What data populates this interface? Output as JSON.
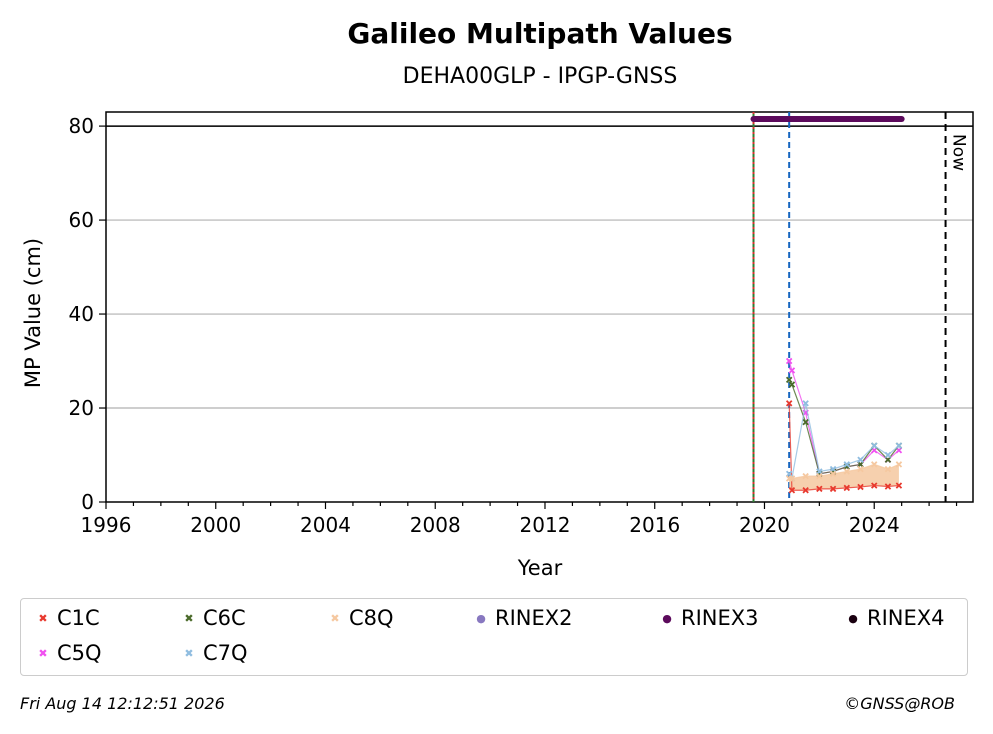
{
  "chart_data": {
    "type": "scatter",
    "title": "Galileo Multipath Values",
    "subtitle": "DEHA00GLP - IPGP-GNSS",
    "xlabel": "Year",
    "ylabel": "MP Value (cm)",
    "xlim": [
      1996,
      2027.6
    ],
    "ylim": [
      0,
      83
    ],
    "x_ticks": [
      1996,
      2000,
      2004,
      2008,
      2012,
      2016,
      2020,
      2024
    ],
    "y_ticks": [
      0,
      20,
      40,
      60,
      80
    ],
    "grid": "horizontal",
    "reference_line_y": 80,
    "now_line": {
      "x": 2026.6,
      "label": "Now"
    },
    "event_lines": [
      {
        "x": 2019.6,
        "color": "#2e7d32",
        "style": "solid"
      },
      {
        "x": 2019.6,
        "color": "#d32f2f",
        "style": "dotted"
      },
      {
        "x": 2020.9,
        "color": "#1565c0",
        "style": "dashed"
      }
    ],
    "rinex_bar": {
      "name": "RINEX3",
      "x_start": 2019.6,
      "x_end": 2025.0,
      "y": 81.5,
      "color": "#5c0a5c"
    },
    "series": [
      {
        "name": "C1C",
        "color": "#e8392e",
        "marker": "x",
        "x": [
          2020.9,
          2021.0,
          2021.5,
          2022.0,
          2022.5,
          2023.0,
          2023.5,
          2024.0,
          2024.5,
          2024.9
        ],
        "y": [
          21,
          2.5,
          2.5,
          2.8,
          2.8,
          3.0,
          3.2,
          3.5,
          3.3,
          3.5
        ]
      },
      {
        "name": "C5Q",
        "color": "#f050f0",
        "marker": "x",
        "x": [
          2020.9,
          2021.0,
          2021.5,
          2022.0,
          2022.5,
          2023.0,
          2023.5,
          2024.0,
          2024.5,
          2024.9
        ],
        "y": [
          30,
          28,
          19,
          6,
          6.5,
          7.5,
          8,
          11,
          9,
          11
        ]
      },
      {
        "name": "C6C",
        "color": "#4a6a2a",
        "marker": "x",
        "x": [
          2020.9,
          2021.0,
          2021.5,
          2022.0,
          2022.5,
          2023.0,
          2023.5,
          2024.0,
          2024.5,
          2024.9
        ],
        "y": [
          26,
          25,
          17,
          6,
          6.5,
          7.5,
          8,
          12,
          9,
          12
        ]
      },
      {
        "name": "C7Q",
        "color": "#90bde0",
        "marker": "x",
        "x": [
          2020.9,
          2021.0,
          2021.5,
          2022.0,
          2022.5,
          2023.0,
          2023.5,
          2024.0,
          2024.5,
          2024.9
        ],
        "y": [
          6,
          5,
          21,
          6.5,
          7,
          8,
          9,
          12,
          10,
          12
        ]
      },
      {
        "name": "C8Q",
        "color": "#f5c8a0",
        "marker": "x",
        "x": [
          2020.9,
          2021.0,
          2021.5,
          2022.0,
          2022.5,
          2023.0,
          2023.5,
          2024.0,
          2024.5,
          2024.9
        ],
        "y": [
          5,
          5,
          5.5,
          5.5,
          6,
          6.5,
          7,
          8,
          7,
          8
        ]
      }
    ],
    "legend": {
      "placement": "bottom",
      "items": [
        {
          "label": "C1C",
          "color": "#e8392e",
          "marker": "×"
        },
        {
          "label": "C6C",
          "color": "#4a6a2a",
          "marker": "×"
        },
        {
          "label": "C8Q",
          "color": "#f5c8a0",
          "marker": "×"
        },
        {
          "label": "RINEX2",
          "color": "#8878c0",
          "marker": "●"
        },
        {
          "label": "RINEX3",
          "color": "#5c0a5c",
          "marker": "●"
        },
        {
          "label": "RINEX4",
          "color": "#1a0010",
          "marker": "●"
        },
        {
          "label": "C5Q",
          "color": "#f050f0",
          "marker": "×"
        },
        {
          "label": "C7Q",
          "color": "#90bde0",
          "marker": "×"
        }
      ]
    }
  },
  "footer": {
    "timestamp": "Fri Aug 14 12:12:51 2026",
    "copyright": "©GNSS@ROB"
  }
}
